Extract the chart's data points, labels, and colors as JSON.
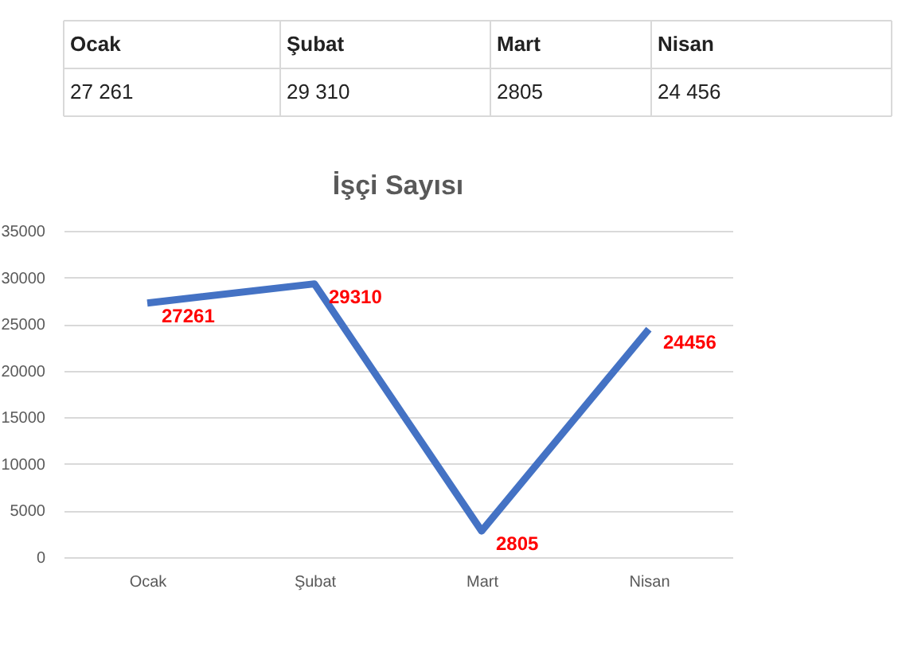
{
  "chart_data": {
    "type": "line",
    "title": "İşçi Sayısı",
    "categories": [
      "Ocak",
      "Şubat",
      "Mart",
      "Nisan"
    ],
    "series": [
      {
        "color": "#4472c4",
        "values": [
          27261,
          29310,
          2805,
          24456
        ]
      }
    ],
    "value_labels": [
      "27261",
      "29310",
      "2805",
      "24456"
    ],
    "annotations": [
      "27 261",
      "29 310",
      "2805",
      "24 456"
    ],
    "legend": false,
    "ylim": [
      0,
      35000
    ],
    "yticks": [
      0,
      5000,
      10000,
      15000,
      20000,
      25000,
      30000,
      35000
    ],
    "grid": "y",
    "marker": "none",
    "line_style": "solid"
  }
}
